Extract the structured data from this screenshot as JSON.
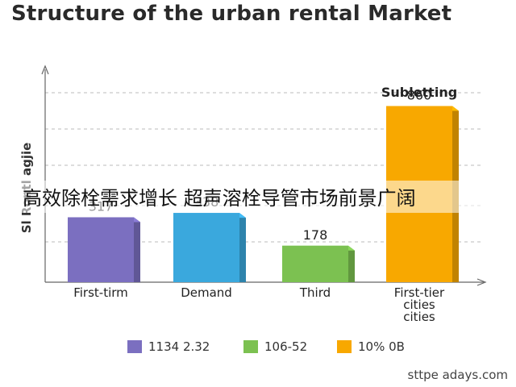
{
  "title": "Structure of the urban rental Market",
  "overlay_text": "高效除栓需求增长 超声溶栓导管市场前景广阔",
  "watermark": "sttpe adays.com",
  "chart_data": {
    "type": "bar",
    "title": "Structure of the urban rental Market",
    "ylabel": "Sl Rontl agjie",
    "ylim": [
      0,
      1000
    ],
    "grid": true,
    "categories": [
      "First-tirm",
      "Demand",
      "Third",
      "First-tier cities cities"
    ],
    "category_lines": [
      [
        "First-tirm"
      ],
      [
        "Demand"
      ],
      [
        "Third"
      ],
      [
        "First-tier",
        "cities",
        "cities"
      ]
    ],
    "values": [
      317,
      338,
      178,
      860
    ],
    "value_labels": [
      "317",
      "338",
      "178",
      "860"
    ],
    "bar_colors": [
      "#7b6fc0",
      "#3aa8dd",
      "#7cc151",
      "#f8a800"
    ],
    "annotation": "Subletting",
    "legend": [
      {
        "label": "1134 2.32",
        "color": "#7b6fc0"
      },
      {
        "label": "106-52",
        "color": "#7cc151"
      },
      {
        "label": "10% 0B",
        "color": "#f8a800"
      }
    ]
  }
}
